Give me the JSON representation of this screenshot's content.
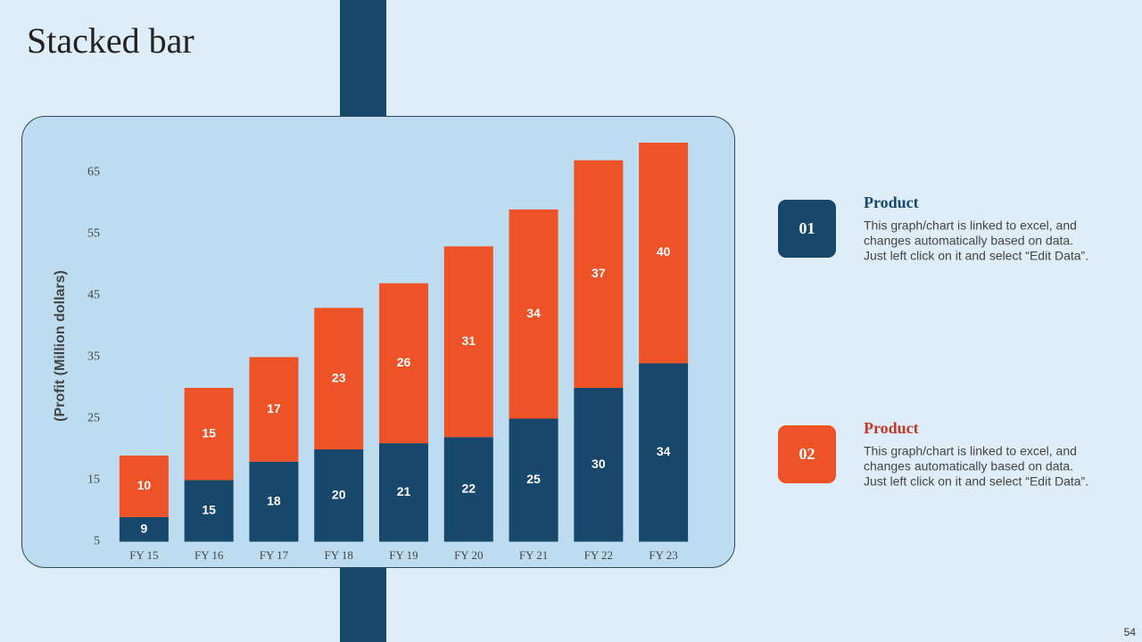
{
  "header": {
    "title": "Stacked bar"
  },
  "chart_data": {
    "type": "stacked-bar",
    "y_label": "(Profit  (Million dollars)",
    "categories": [
      "FY 15",
      "FY 16",
      "FY 17",
      "FY 18",
      "FY 19",
      "FY 20",
      "FY 21",
      "FY 22",
      "FY 23"
    ],
    "series": [
      {
        "color": "#17476a",
        "values": [
          9,
          15,
          18,
          20,
          21,
          22,
          25,
          30,
          34
        ]
      },
      {
        "color": "#ee5227",
        "values": [
          10,
          15,
          17,
          23,
          26,
          31,
          34,
          37,
          40
        ]
      }
    ],
    "ylim": [
      5,
      70
    ],
    "yticks": [
      5,
      15,
      25,
      35,
      45,
      55,
      65
    ],
    "grid": false
  },
  "cards": [
    {
      "number": "01",
      "color": "#17476a",
      "title": "Product",
      "title_color": "#17476a",
      "lines": [
        "This graph/chart is linked to excel, and",
        "changes automatically based on data.",
        "Just left click on it and select “Edit Data”."
      ]
    },
    {
      "number": "02",
      "color": "#ee5227",
      "title": "Product",
      "title_color": "#c0392b",
      "lines": [
        "This graph/chart is linked to excel, and",
        "changes automatically based on data.",
        "Just left click on it and select “Edit Data”."
      ]
    }
  ],
  "footer": {
    "page": "54"
  }
}
